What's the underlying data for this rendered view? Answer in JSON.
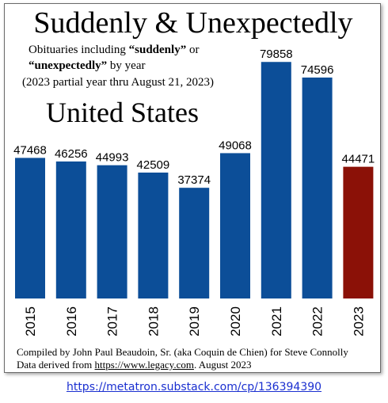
{
  "title": "Suddenly & Unexpectedly",
  "subtitle": {
    "line1_pre": "Obituaries including ",
    "line1_bold": "“suddenly”",
    "line1_post": " or",
    "line2_bold": "“unexpectedly”",
    "line2_post": " by year",
    "line3": "(2023 partial year thru August 21, 2023)"
  },
  "region_label": "United States",
  "chart_data": {
    "type": "bar",
    "categories": [
      "2015",
      "2016",
      "2017",
      "2018",
      "2019",
      "2020",
      "2021",
      "2022",
      "2023"
    ],
    "values": [
      47468,
      46256,
      44993,
      42509,
      37374,
      49068,
      79858,
      74596,
      44471
    ],
    "ylim": [
      0,
      85000
    ],
    "colors": {
      "default": "#0c4e98",
      "highlight": "#8b1107",
      "highlight_category": "2023"
    },
    "axes_visible": false,
    "grid": false,
    "data_labels": true
  },
  "footer": {
    "credit": "Compiled by John Paul Beaudoin, Sr. (aka Coquin de Chien) for Steve Connolly",
    "source_pre": "Data derived from ",
    "source_link": "https://www.legacy.com",
    "source_post": ". August 2023"
  },
  "caption_link": "https://metatron.substack.com/cp/136394390"
}
